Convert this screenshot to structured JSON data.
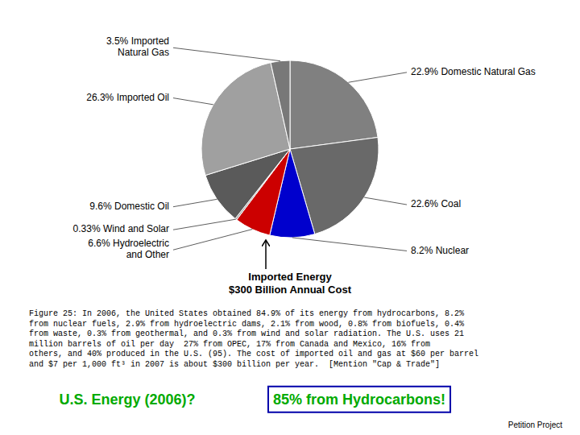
{
  "chart_data": {
    "type": "pie",
    "title": "U.S. Energy (2006)?",
    "subtitle": "85% from Hydrocarbons!",
    "categories": [
      "Domestic Natural Gas",
      "Coal",
      "Nuclear",
      "Hydroelectric\nand Other",
      "Wind and Solar",
      "Domestic Oil",
      "Imported Oil",
      "Imported\nNatural Gas"
    ],
    "values": [
      22.9,
      22.6,
      8.2,
      6.6,
      0.33,
      9.6,
      26.3,
      3.5
    ],
    "value_labels": [
      "22.9%",
      "22.6%",
      "8.2%",
      "6.6%",
      "0.33%",
      "9.6%",
      "26.3%",
      "3.5%"
    ],
    "colors": [
      "#808080",
      "#696969",
      "#0000CD",
      "#CC0000",
      "#A9A9A9",
      "#5A5A5A",
      "#A0A0A0",
      "#787878"
    ],
    "data_labels": true,
    "annotations": [
      "Imported Energy\n$300 Billion Annual Cost",
      "Figure 25: In 2006, the United States obtained 84.9% of its energy from hydrocarbons, 8.2%\nfrom nuclear fuels, 2.9% from hydroelectric dams, 2.1% from wood, 0.8% from biofuels, 0.4%\nfrom waste, 0.3% from geothermal, and 0.3% from wind and solar radiation. The U.S. uses 21\nmillion barrels of oil per day  27% from OPEC, 17% from Canada and Mexico, 16% from\nothers, and 40% produced in the U.S. (95). The cost of imported oil and gas at $60 per barrel\nand $7 per 1,000 ft³ in 2007 is about $300 billion per year.  [Mention \"Cap & Trade\"]",
      "Petition Project"
    ]
  }
}
